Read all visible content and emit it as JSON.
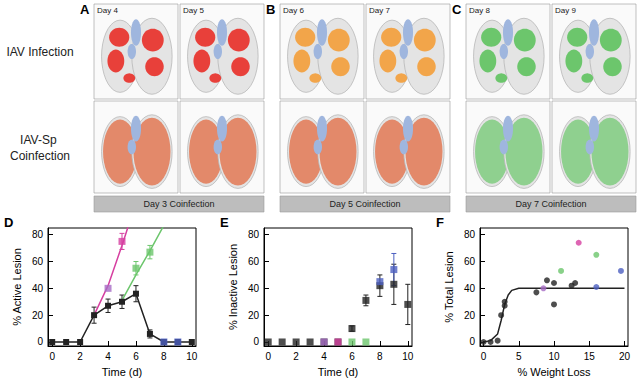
{
  "figure": {
    "row_labels": [
      "IAV Infection",
      "IAV-Sp Coinfection"
    ],
    "lung_panels": [
      {
        "letter": "A",
        "days": [
          "Day 4",
          "Day 5"
        ],
        "color": "#e8403a",
        "coinfection": "Day 3 Coinfection",
        "coinfection_color": "#e3896a"
      },
      {
        "letter": "B",
        "days": [
          "Day 6",
          "Day 7"
        ],
        "color": "#f2a54a",
        "coinfection": "Day 5 Coinfection",
        "coinfection_color": "#e3896a"
      },
      {
        "letter": "C",
        "days": [
          "Day 8",
          "Day 9"
        ],
        "color": "#6cc66c",
        "coinfection": "Day 7 Coinfection",
        "coinfection_color": "#8fd08f"
      }
    ]
  },
  "chart_data": [
    {
      "type": "scatter",
      "panel": "D",
      "xlabel": "Time (d)",
      "ylabel": "% Active Lesion",
      "xlim": [
        -0.3,
        10.3
      ],
      "xticks": [
        0,
        2,
        4,
        6,
        8,
        10
      ],
      "ylim": [
        -3,
        85
      ],
      "yticks": [
        0,
        20,
        40,
        60,
        80
      ],
      "grid": false,
      "series": [
        {
          "type": "line",
          "marker": "none",
          "color": "#d63fa0",
          "points": [
            [
              3,
              20
            ],
            [
              4,
              42
            ],
            [
              5,
              72
            ],
            [
              5.5,
              88
            ]
          ]
        },
        {
          "type": "line",
          "marker": "none",
          "color": "#6cc66c",
          "points": [
            [
              5,
              31
            ],
            [
              6,
              50
            ],
            [
              7,
              68
            ],
            [
              8,
              87
            ]
          ]
        },
        {
          "type": "line",
          "marker": "square",
          "color": "#222222",
          "points": [
            [
              0,
              0
            ],
            [
              1,
              0
            ],
            [
              2,
              0
            ],
            [
              3,
              20
            ],
            [
              4,
              27
            ],
            [
              5,
              30
            ],
            [
              6,
              36
            ],
            [
              7,
              6
            ],
            [
              8,
              0
            ],
            [
              9,
              0
            ],
            [
              10,
              0
            ]
          ],
          "errors": [
            null,
            null,
            null,
            6,
            5,
            5,
            6,
            3,
            null,
            null,
            null
          ]
        },
        {
          "type": "scatter",
          "marker": "square",
          "color": "#a66bc4",
          "points": [
            [
              4,
              40
            ]
          ]
        },
        {
          "type": "scatter",
          "marker": "square",
          "color": "#d63fa0",
          "points": [
            [
              5,
              75
            ]
          ],
          "errors": [
            6
          ]
        },
        {
          "type": "scatter",
          "marker": "square",
          "color": "#6cc66c",
          "points": [
            [
              6,
              55
            ],
            [
              7,
              67
            ]
          ],
          "errors": [
            5,
            5
          ]
        },
        {
          "type": "scatter",
          "marker": "square",
          "color": "#4c5fc0",
          "points": [
            [
              8,
              0
            ],
            [
              9,
              0
            ]
          ]
        }
      ]
    },
    {
      "type": "scatter",
      "panel": "E",
      "xlabel": "Time (d)",
      "ylabel": "% Inactive Lesion",
      "xlim": [
        -0.3,
        10.3
      ],
      "xticks": [
        0,
        2,
        4,
        6,
        8,
        10
      ],
      "ylim": [
        -3,
        85
      ],
      "yticks": [
        0,
        20,
        40,
        60,
        80
      ],
      "grid": false,
      "series": [
        {
          "type": "scatter",
          "marker": "square",
          "color": "#222222",
          "points": [
            [
              0,
              0
            ],
            [
              1,
              0
            ],
            [
              2,
              0
            ],
            [
              3,
              0
            ],
            [
              4,
              0
            ],
            [
              5,
              0
            ],
            [
              6,
              10
            ],
            [
              7,
              31
            ],
            [
              8,
              42
            ],
            [
              9,
              43
            ],
            [
              10,
              28
            ]
          ],
          "errors": [
            null,
            null,
            null,
            null,
            null,
            null,
            2,
            4,
            8,
            15,
            15
          ]
        },
        {
          "type": "scatter",
          "marker": "square",
          "color": "#a66bc4",
          "points": [
            [
              4,
              0
            ]
          ]
        },
        {
          "type": "scatter",
          "marker": "square",
          "color": "#d63fa0",
          "points": [
            [
              5,
              0
            ]
          ]
        },
        {
          "type": "scatter",
          "marker": "square",
          "color": "#6cc66c",
          "points": [
            [
              6,
              0
            ],
            [
              7,
              0
            ]
          ]
        },
        {
          "type": "scatter",
          "marker": "square",
          "color": "#4c5fc0",
          "points": [
            [
              8,
              45
            ],
            [
              9,
              54
            ]
          ],
          "errors": [
            null,
            12
          ]
        }
      ]
    },
    {
      "type": "scatter",
      "panel": "F",
      "xlabel": "% Weight Loss",
      "ylabel": "% Total Lesion",
      "xlim": [
        -0.5,
        20.5
      ],
      "xticks": [
        0,
        5,
        10,
        15,
        20
      ],
      "ylim": [
        -3,
        85
      ],
      "yticks": [
        0,
        20,
        40,
        60,
        80
      ],
      "grid": false,
      "series": [
        {
          "type": "line",
          "marker": "none",
          "color": "#222222",
          "points": [
            [
              0,
              0
            ],
            [
              1,
              1
            ],
            [
              2,
              6
            ],
            [
              2.5,
              16
            ],
            [
              3,
              28
            ],
            [
              3.5,
              35
            ],
            [
              4,
              38.5
            ],
            [
              5,
              40
            ],
            [
              20,
              40
            ]
          ]
        },
        {
          "type": "scatter",
          "marker": "circle",
          "color": "#222222",
          "points": [
            [
              0,
              0
            ],
            [
              1,
              0
            ],
            [
              2,
              1
            ],
            [
              2.5,
              20
            ],
            [
              3,
              30
            ],
            [
              3,
              27
            ],
            [
              7.5,
              37
            ],
            [
              9,
              46
            ],
            [
              10,
              28
            ],
            [
              10,
              44
            ],
            [
              12.5,
              42
            ],
            [
              13,
              44
            ]
          ]
        },
        {
          "type": "scatter",
          "marker": "circle",
          "color": "#a66bc4",
          "points": [
            [
              8.5,
              40
            ]
          ]
        },
        {
          "type": "scatter",
          "marker": "circle",
          "color": "#6cc66c",
          "points": [
            [
              11,
              53
            ],
            [
              16,
              65
            ]
          ]
        },
        {
          "type": "scatter",
          "marker": "circle",
          "color": "#d63fa0",
          "points": [
            [
              13.5,
              74
            ]
          ]
        },
        {
          "type": "scatter",
          "marker": "circle",
          "color": "#4c5fc0",
          "points": [
            [
              16,
              41
            ],
            [
              19.5,
              53
            ]
          ]
        }
      ]
    }
  ]
}
